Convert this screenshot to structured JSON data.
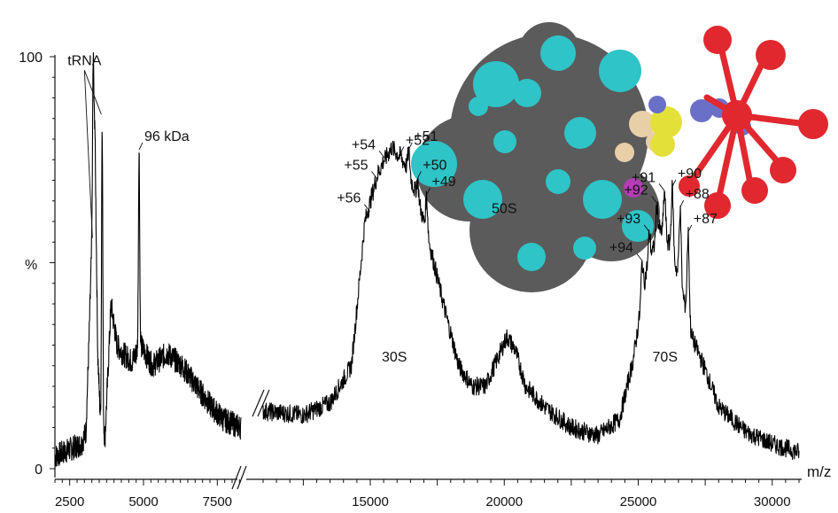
{
  "chart_data": {
    "type": "line",
    "title": "",
    "xlabel": "m/z",
    "ylabel": "%",
    "y_ticks": [
      "0",
      "100"
    ],
    "ylim": [
      0,
      100
    ],
    "x_segments": [
      {
        "xlim": [
          2000,
          8300
        ],
        "ticks": [
          2500,
          5000,
          7500
        ]
      },
      {
        "xlim": [
          11000,
          31000
        ],
        "ticks": [
          15000,
          20000,
          25000,
          30000
        ]
      }
    ],
    "x_tick_labels": [
      "2500",
      "5000",
      "7500",
      "15000",
      "20000",
      "25000",
      "30000"
    ],
    "axis_break": true,
    "spectrum_profile": [
      [
        2000,
        3
      ],
      [
        2900,
        6
      ],
      [
        3050,
        9
      ],
      [
        3150,
        30
      ],
      [
        3250,
        55
      ],
      [
        3350,
        85
      ],
      [
        3450,
        28
      ],
      [
        3550,
        10
      ],
      [
        3700,
        8
      ],
      [
        3900,
        40
      ],
      [
        4100,
        30
      ],
      [
        4300,
        28
      ],
      [
        4600,
        26
      ],
      [
        4900,
        30
      ],
      [
        5300,
        25
      ],
      [
        5800,
        28
      ],
      [
        6300,
        25
      ],
      [
        6800,
        20
      ],
      [
        7300,
        15
      ],
      [
        7700,
        12
      ],
      [
        8300,
        10
      ],
      [
        11000,
        14
      ],
      [
        12500,
        13
      ],
      [
        13500,
        16
      ],
      [
        14300,
        25
      ],
      [
        14800,
        60
      ],
      [
        15300,
        72
      ],
      [
        15800,
        78
      ],
      [
        16300,
        74
      ],
      [
        16800,
        65
      ],
      [
        17300,
        52
      ],
      [
        17800,
        38
      ],
      [
        18300,
        25
      ],
      [
        18800,
        20
      ],
      [
        19300,
        20
      ],
      [
        19700,
        26
      ],
      [
        20100,
        32
      ],
      [
        20400,
        29
      ],
      [
        20800,
        20
      ],
      [
        21500,
        15
      ],
      [
        22500,
        10
      ],
      [
        23500,
        8
      ],
      [
        24300,
        12
      ],
      [
        24800,
        26
      ],
      [
        25300,
        48
      ],
      [
        25800,
        58
      ],
      [
        26200,
        54
      ],
      [
        26600,
        44
      ],
      [
        27000,
        32
      ],
      [
        27500,
        24
      ],
      [
        28000,
        15
      ],
      [
        29000,
        9
      ],
      [
        30000,
        6
      ],
      [
        31000,
        4
      ]
    ],
    "peaks": [
      {
        "mz": 3300,
        "intensity": 100,
        "label": ""
      },
      {
        "mz": 3600,
        "intensity": 84,
        "label": ""
      },
      {
        "mz": 4850,
        "intensity": 77,
        "label": "96 kDa"
      },
      {
        "mz": 14980,
        "intensity": 62,
        "label": "+56"
      },
      {
        "mz": 15250,
        "intensity": 70,
        "label": "+55"
      },
      {
        "mz": 15530,
        "intensity": 75,
        "label": "+54"
      },
      {
        "mz": 15820,
        "intensity": 76,
        "label": ""
      },
      {
        "mz": 16120,
        "intensity": 76,
        "label": "+52"
      },
      {
        "mz": 16430,
        "intensity": 77,
        "label": "+51"
      },
      {
        "mz": 16760,
        "intensity": 70,
        "label": "+50"
      },
      {
        "mz": 17100,
        "intensity": 66,
        "label": "+49"
      },
      {
        "mz": 25150,
        "intensity": 50,
        "label": "+94"
      },
      {
        "mz": 25420,
        "intensity": 57,
        "label": "+93"
      },
      {
        "mz": 25700,
        "intensity": 64,
        "label": "+92"
      },
      {
        "mz": 25980,
        "intensity": 67,
        "label": "+91"
      },
      {
        "mz": 26270,
        "intensity": 68,
        "label": "+90"
      },
      {
        "mz": 26560,
        "intensity": 63,
        "label": "+88"
      },
      {
        "mz": 26860,
        "intensity": 57,
        "label": "+87"
      }
    ],
    "annotations": [
      {
        "text": "tRNA",
        "mz": 3000,
        "intensity": 98,
        "points_to": [
          3300,
          3600
        ]
      },
      {
        "text": "30S",
        "mz": 15900,
        "intensity": 26
      },
      {
        "text": "50S",
        "mz": 20000,
        "intensity": 62
      },
      {
        "text": "70S",
        "mz": 26000,
        "intensity": 26
      }
    ],
    "inset": {
      "type": "molecular surface rendering",
      "colors": [
        "#5b5b5b",
        "#2ec4c8",
        "#e8cfa8",
        "#e4e03a",
        "#6a70c8",
        "#e0282e",
        "#b43cb4"
      ]
    }
  }
}
